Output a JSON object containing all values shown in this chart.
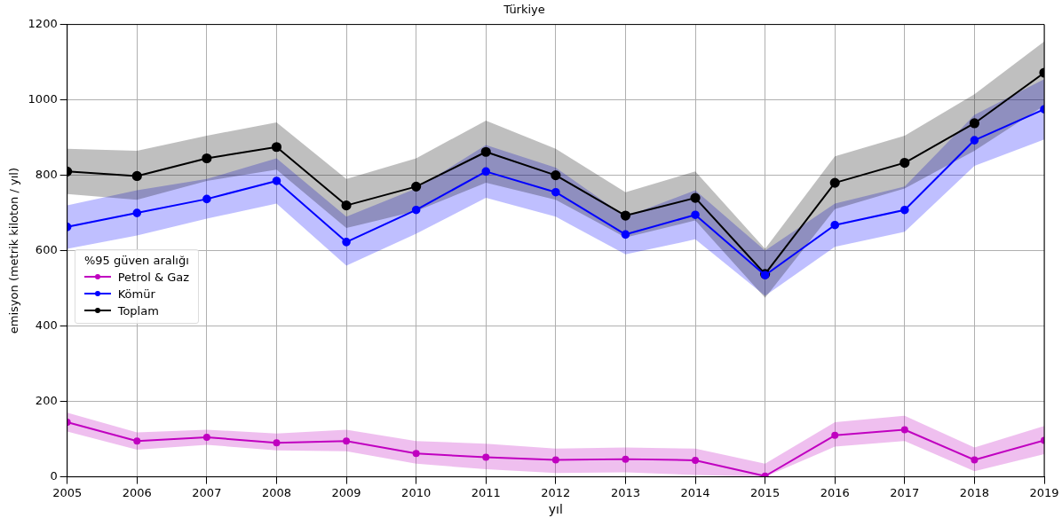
{
  "chart_data": {
    "type": "line",
    "title": "Türkiye",
    "xlabel": "yıl",
    "ylabel": "emisyon (metrik kiloton / yıl)",
    "legend_title": "%95 güven aralığı",
    "x": [
      2005,
      2006,
      2007,
      2008,
      2009,
      2010,
      2011,
      2012,
      2013,
      2014,
      2015,
      2016,
      2017,
      2018,
      2019
    ],
    "xlim": [
      2005,
      2019
    ],
    "xticks": [
      2005,
      2006,
      2007,
      2008,
      2009,
      2010,
      2011,
      2012,
      2013,
      2014,
      2015,
      2016,
      2017,
      2018,
      2019
    ],
    "ylim": [
      0,
      1200
    ],
    "yticks": [
      0,
      200,
      400,
      600,
      800,
      1000,
      1200
    ],
    "grid": true,
    "legend": "left",
    "marker": "circle",
    "line_style": "solid",
    "series": [
      {
        "name": "Petrol & Gaz",
        "color": "#c000c0",
        "values": [
          145,
          95,
          105,
          90,
          95,
          62,
          52,
          45,
          47,
          44,
          2,
          110,
          125,
          45,
          97
        ],
        "lower": [
          120,
          72,
          85,
          70,
          68,
          35,
          20,
          10,
          12,
          5,
          0,
          80,
          95,
          15,
          60
        ],
        "upper": [
          170,
          118,
          125,
          115,
          125,
          95,
          88,
          75,
          78,
          75,
          35,
          145,
          162,
          78,
          135
        ]
      },
      {
        "name": "Kömür",
        "color": "#0000ff",
        "values": [
          663,
          700,
          737,
          785,
          623,
          708,
          810,
          755,
          643,
          695,
          535,
          668,
          708,
          893,
          975
        ],
        "lower": [
          605,
          640,
          685,
          725,
          560,
          645,
          740,
          690,
          590,
          630,
          480,
          610,
          650,
          825,
          895
        ],
        "upper": [
          720,
          760,
          790,
          845,
          690,
          765,
          880,
          820,
          690,
          760,
          600,
          725,
          770,
          960,
          1055
        ]
      },
      {
        "name": "Toplam",
        "color": "#000000",
        "values": [
          810,
          798,
          845,
          875,
          720,
          770,
          862,
          800,
          693,
          740,
          538,
          780,
          833,
          938,
          1072
        ],
        "lower": [
          750,
          735,
          785,
          815,
          660,
          705,
          780,
          735,
          635,
          680,
          475,
          710,
          765,
          865,
          985
        ],
        "upper": [
          870,
          865,
          905,
          940,
          790,
          845,
          945,
          870,
          755,
          810,
          605,
          850,
          905,
          1015,
          1155
        ]
      }
    ]
  }
}
